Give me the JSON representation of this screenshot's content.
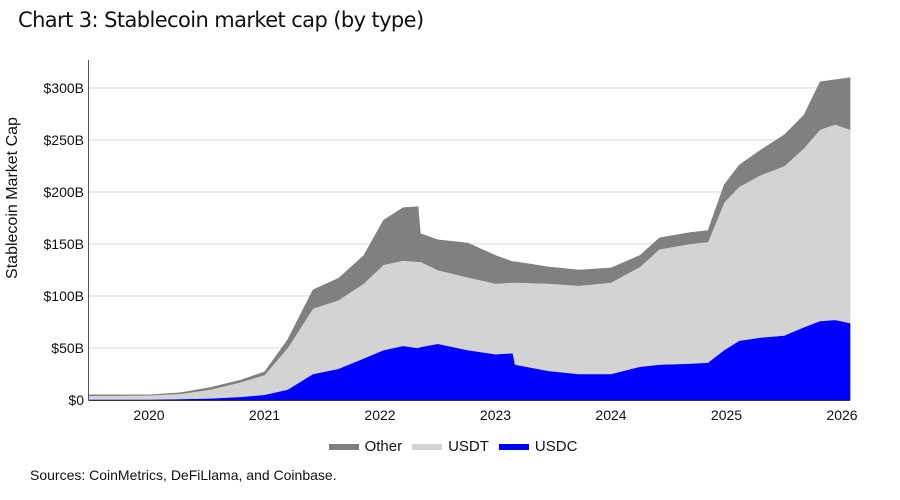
{
  "title": "Chart 3: Stablecoin market cap (by type)",
  "source": "Sources: CoinMetrics, DeFiLlama, and Coinbase.",
  "chart_data": {
    "type": "area",
    "stacked": true,
    "title": "Chart 3: Stablecoin market cap (by type)",
    "xlabel": "",
    "ylabel": "Stablecoin Market Cap",
    "xlim": [
      2019.48,
      2026.07
    ],
    "ylim": [
      0,
      330
    ],
    "y_unit": "USD billions",
    "grid": "horizontal",
    "legend_position": "bottom-center",
    "x_ticks": [
      {
        "value": 2020,
        "label": "2020"
      },
      {
        "value": 2021,
        "label": "2021"
      },
      {
        "value": 2022,
        "label": "2022"
      },
      {
        "value": 2023,
        "label": "2023"
      },
      {
        "value": 2024,
        "label": "2024"
      },
      {
        "value": 2025,
        "label": "2025"
      },
      {
        "value": 2026,
        "label": "2026"
      }
    ],
    "y_ticks": [
      {
        "value": 0,
        "label": "$0"
      },
      {
        "value": 50,
        "label": "$50B"
      },
      {
        "value": 100,
        "label": "$100B"
      },
      {
        "value": 150,
        "label": "$150B"
      },
      {
        "value": 200,
        "label": "$200B"
      },
      {
        "value": 250,
        "label": "$250B"
      },
      {
        "value": 300,
        "label": "$300B"
      }
    ],
    "x": [
      2019.48,
      2020.0,
      2020.27,
      2020.53,
      2020.79,
      2021.0,
      2021.2,
      2021.42,
      2021.64,
      2021.86,
      2022.03,
      2022.2,
      2022.33,
      2022.35,
      2022.5,
      2022.76,
      2023.0,
      2023.15,
      2023.17,
      2023.46,
      2023.72,
      2024.0,
      2024.25,
      2024.42,
      2024.68,
      2024.84,
      2024.98,
      2025.11,
      2025.29,
      2025.5,
      2025.67,
      2025.81,
      2025.94,
      2026.07
    ],
    "series": [
      {
        "name": "USDC",
        "color": "#0000ff",
        "values": [
          0.5,
          0.5,
          1,
          1.5,
          3,
          5,
          10,
          25,
          30,
          40,
          48,
          52,
          50,
          51,
          54,
          48,
          44,
          45,
          34,
          28,
          25,
          25,
          32,
          34,
          35,
          36,
          48,
          57,
          60,
          62,
          70,
          76,
          77,
          74
        ]
      },
      {
        "name": "USDT",
        "color": "#d3d3d3",
        "values": [
          3.5,
          4,
          5,
          8.5,
          14,
          19,
          40,
          63,
          66,
          72,
          82,
          82,
          83,
          82,
          71,
          70,
          68,
          68,
          79,
          84,
          85,
          88,
          96,
          111,
          115,
          116,
          142,
          148,
          156,
          163,
          172,
          184,
          188,
          186
        ]
      },
      {
        "name": "Other",
        "color": "#808080",
        "values": [
          1,
          0.5,
          1,
          2,
          2,
          3,
          8,
          18,
          21,
          27,
          43,
          51,
          53,
          27,
          29,
          33,
          27,
          20,
          20,
          16,
          15,
          14,
          11,
          11,
          11,
          11,
          17,
          21,
          24,
          30,
          32,
          46,
          43,
          50
        ]
      }
    ]
  },
  "legend": [
    {
      "label": "Other",
      "color": "#808080"
    },
    {
      "label": "USDT",
      "color": "#d3d3d3"
    },
    {
      "label": "USDC",
      "color": "#0000ff"
    }
  ]
}
